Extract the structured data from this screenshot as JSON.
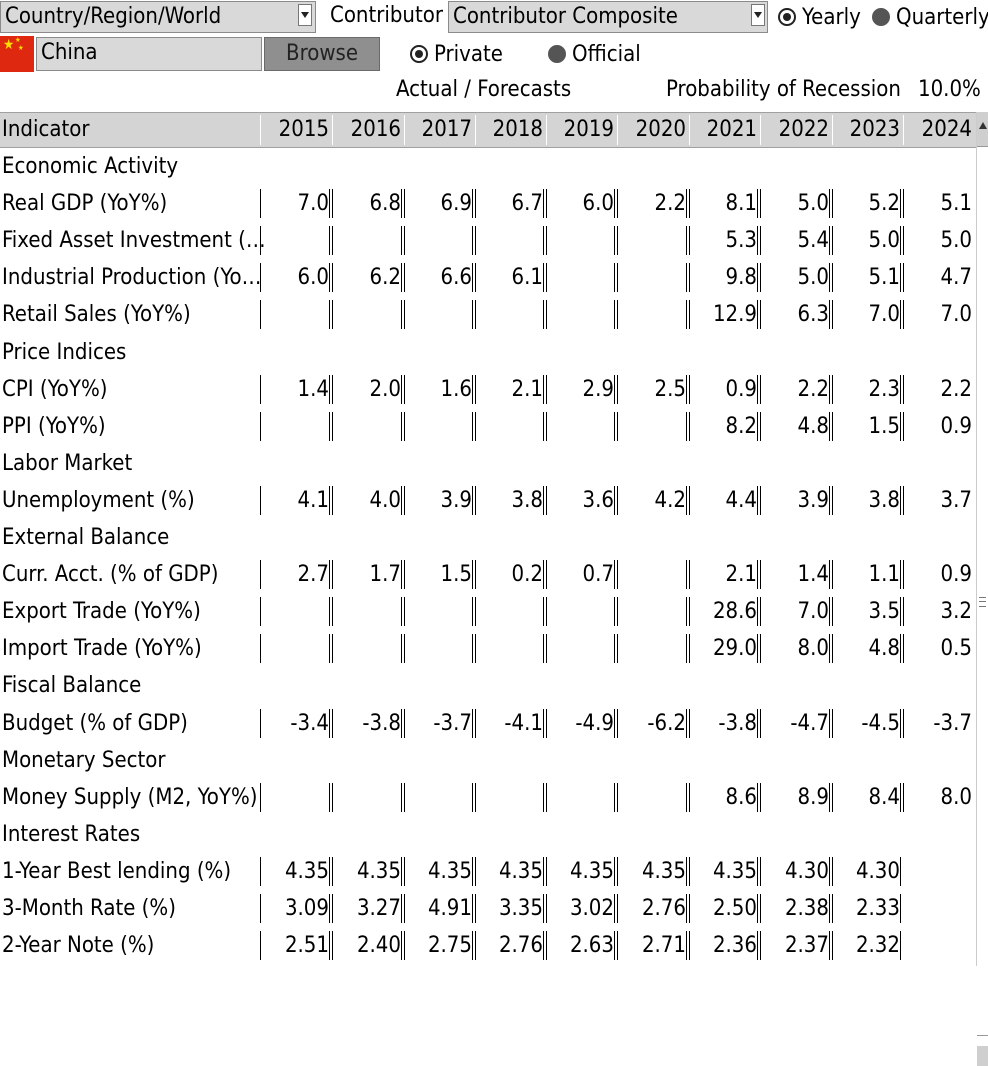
{
  "controls": {
    "region_dropdown_value": "Country/Region/World",
    "contributor_label": "Contributor",
    "contributor_dropdown_value": "Contributor Composite",
    "period_options": [
      {
        "label": "Yearly",
        "selected": true
      },
      {
        "label": "Quarterly",
        "selected": false
      }
    ],
    "country_value": "China",
    "browse_label": "Browse",
    "source_options": [
      {
        "label": "Private",
        "selected": true
      },
      {
        "label": "Official",
        "selected": false
      }
    ],
    "actual_forecasts_label": "Actual / Forecasts",
    "recession_label": "Probability of Recession",
    "recession_value": "10.0%"
  },
  "table": {
    "header_label": "Indicator",
    "years": [
      "2015",
      "2016",
      "2017",
      "2018",
      "2019",
      "2020",
      "2021",
      "2022",
      "2023",
      "2024"
    ],
    "rows": [
      {
        "type": "section",
        "label": "Economic Activity"
      },
      {
        "type": "data",
        "label": "Real GDP (YoY%)",
        "values": [
          "7.0",
          "6.8",
          "6.9",
          "6.7",
          "6.0",
          "2.2",
          "8.1",
          "5.0",
          "5.2",
          "5.1"
        ]
      },
      {
        "type": "data",
        "label": "Fixed Asset Investment (…",
        "values": [
          "",
          "",
          "",
          "",
          "",
          "",
          "5.3",
          "5.4",
          "5.0",
          "5.0"
        ]
      },
      {
        "type": "data",
        "label": "Industrial Production (Yo…",
        "values": [
          "6.0",
          "6.2",
          "6.6",
          "6.1",
          "",
          "",
          "9.8",
          "5.0",
          "5.1",
          "4.7"
        ]
      },
      {
        "type": "data",
        "label": "Retail Sales (YoY%)",
        "values": [
          "",
          "",
          "",
          "",
          "",
          "",
          "12.9",
          "6.3",
          "7.0",
          "7.0"
        ]
      },
      {
        "type": "section",
        "label": "Price Indices"
      },
      {
        "type": "data",
        "label": "CPI (YoY%)",
        "values": [
          "1.4",
          "2.0",
          "1.6",
          "2.1",
          "2.9",
          "2.5",
          "0.9",
          "2.2",
          "2.3",
          "2.2"
        ]
      },
      {
        "type": "data",
        "label": "PPI (YoY%)",
        "values": [
          "",
          "",
          "",
          "",
          "",
          "",
          "8.2",
          "4.8",
          "1.5",
          "0.9"
        ]
      },
      {
        "type": "section",
        "label": "Labor Market"
      },
      {
        "type": "data",
        "label": "Unemployment (%)",
        "values": [
          "4.1",
          "4.0",
          "3.9",
          "3.8",
          "3.6",
          "4.2",
          "4.4",
          "3.9",
          "3.8",
          "3.7"
        ]
      },
      {
        "type": "section",
        "label": "External Balance"
      },
      {
        "type": "data",
        "label": "Curr. Acct. (% of GDP)",
        "values": [
          "2.7",
          "1.7",
          "1.5",
          "0.2",
          "0.7",
          "",
          "2.1",
          "1.4",
          "1.1",
          "0.9"
        ]
      },
      {
        "type": "data",
        "label": "Export Trade (YoY%)",
        "values": [
          "",
          "",
          "",
          "",
          "",
          "",
          "28.6",
          "7.0",
          "3.5",
          "3.2"
        ]
      },
      {
        "type": "data",
        "label": "Import Trade (YoY%)",
        "values": [
          "",
          "",
          "",
          "",
          "",
          "",
          "29.0",
          "8.0",
          "4.8",
          "0.5"
        ]
      },
      {
        "type": "section",
        "label": "Fiscal Balance"
      },
      {
        "type": "data",
        "label": "Budget (% of GDP)",
        "values": [
          "-3.4",
          "-3.8",
          "-3.7",
          "-4.1",
          "-4.9",
          "-6.2",
          "-3.8",
          "-4.7",
          "-4.5",
          "-3.7"
        ]
      },
      {
        "type": "section",
        "label": "Monetary Sector"
      },
      {
        "type": "data",
        "label": "Money Supply (M2, YoY%)",
        "values": [
          "",
          "",
          "",
          "",
          "",
          "",
          "8.6",
          "8.9",
          "8.4",
          "8.0"
        ]
      },
      {
        "type": "section",
        "label": "Interest Rates"
      },
      {
        "type": "data",
        "label": "1-Year Best lending (%)",
        "values": [
          "4.35",
          "4.35",
          "4.35",
          "4.35",
          "4.35",
          "4.35",
          "4.35",
          "4.30",
          "4.30",
          ""
        ]
      },
      {
        "type": "data",
        "label": "3-Month Rate (%)",
        "values": [
          "3.09",
          "3.27",
          "4.91",
          "3.35",
          "3.02",
          "2.76",
          "2.50",
          "2.38",
          "2.33",
          ""
        ]
      },
      {
        "type": "data",
        "label": "2-Year Note (%)",
        "values": [
          "2.51",
          "2.40",
          "2.75",
          "2.76",
          "2.63",
          "2.71",
          "2.36",
          "2.37",
          "2.32",
          ""
        ]
      }
    ]
  }
}
